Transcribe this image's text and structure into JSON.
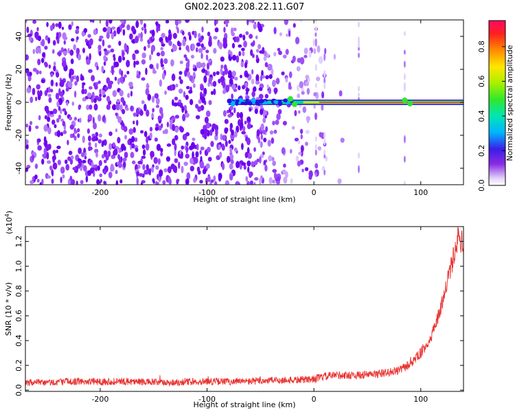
{
  "title": "GN02.2023.208.22.11.G07",
  "chart_data": [
    {
      "type": "heatmap",
      "xlabel": "Height of straight line (km)",
      "ylabel": "Frequency (Hz)",
      "xlim": [
        -270,
        140
      ],
      "ylim": [
        -50,
        50
      ],
      "xticks": [
        -200,
        -100,
        0,
        100
      ],
      "yticks": [
        -40,
        -20,
        0,
        20,
        40
      ],
      "colorbar": {
        "label": "Normalized spectral amplitude",
        "range": [
          0,
          0.95
        ],
        "ticks": [
          0.0,
          0.2,
          0.4,
          0.6,
          0.8
        ],
        "tick_labels": [
          "0.0",
          "0.2",
          "0.4",
          "0.6",
          "0.8"
        ],
        "colormap": "rainbow (violet low → red/magenta high)"
      },
      "features": [
        {
          "name": "noise",
          "x_range": [
            -270,
            -30
          ],
          "amplitude": 0.1
        },
        {
          "name": "carrier line",
          "x_range": [
            -80,
            140
          ],
          "frequency": 0,
          "amplitude_start": 0.2,
          "amplitude_end": 0.9
        }
      ]
    },
    {
      "type": "line",
      "xlabel": "Height of straight line (km)",
      "ylabel": "SNR (10 * v/v)",
      "scale_label": "(x10",
      "scale_exp": "4",
      "scale_close": ")",
      "xlim": [
        -270,
        140
      ],
      "ylim": [
        -0.01,
        1.32
      ],
      "xticks": [
        -200,
        -100,
        0,
        100
      ],
      "yticks": [
        0.0,
        0.2,
        0.4,
        0.6,
        0.8,
        1.0,
        1.2
      ],
      "ytick_labels": [
        "0.0",
        "0.2",
        "0.4",
        "0.6",
        "0.8",
        "1.0",
        "1.2"
      ],
      "color": "#e8312f",
      "x": [
        -270,
        -250,
        -230,
        -200,
        -170,
        -140,
        -110,
        -80,
        -60,
        -40,
        -20,
        0,
        10,
        20,
        40,
        60,
        80,
        90,
        100,
        110,
        120,
        130,
        135,
        140
      ],
      "values": [
        0.06,
        0.06,
        0.07,
        0.07,
        0.07,
        0.06,
        0.07,
        0.07,
        0.07,
        0.08,
        0.08,
        0.09,
        0.11,
        0.12,
        0.12,
        0.13,
        0.16,
        0.21,
        0.3,
        0.42,
        0.7,
        1.05,
        1.24,
        1.17
      ]
    }
  ]
}
